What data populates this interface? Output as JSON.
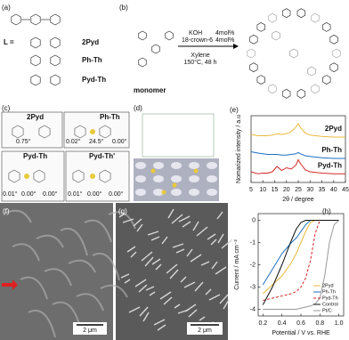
{
  "panels": {
    "a": {
      "label": "(a)",
      "L": "L =",
      "names": [
        "2Pyd",
        "Ph-Th",
        "Pyd-Th"
      ]
    },
    "b": {
      "label": "(b)",
      "monomer": "monomer",
      "reagents": [
        "KOH",
        "18-crown-6",
        "4mol%",
        "4mol%",
        "Xylene",
        "150°C, 48 h"
      ]
    },
    "c": {
      "label": "(c)",
      "structures": [
        {
          "name": "2Pyd",
          "angles": [
            "0.75°"
          ]
        },
        {
          "name": "Ph-Th",
          "angles": [
            "0.02°",
            "24.5°",
            "0.00°"
          ]
        },
        {
          "name": "Pyd-Th",
          "angles": [
            "0.01°",
            "0.00°",
            "0.00°"
          ]
        },
        {
          "name": "Pyd-Th'",
          "angles": [
            "0.01°",
            "0.00°",
            "0.00°"
          ]
        }
      ]
    },
    "d": {
      "label": "(d)"
    },
    "f": {
      "label": "(f)",
      "scale": "2 μm"
    },
    "g": {
      "label": "(g)",
      "scale": "2 μm"
    }
  },
  "chart_data": [
    {
      "type": "line",
      "panel": "(e)",
      "xlabel": "2θ / degree",
      "ylabel": "Nomarized intensity / a.u",
      "x": [
        5,
        8,
        10,
        12,
        14,
        16,
        18,
        20,
        22,
        24,
        25,
        26,
        28,
        30,
        35,
        40,
        45
      ],
      "xlim": [
        5,
        45
      ],
      "xticks": [
        5,
        10,
        15,
        20,
        25,
        30,
        35,
        40,
        45
      ],
      "ylim": [
        0,
        10
      ],
      "series": [
        {
          "name": "2Pyd",
          "color": "#e8b93c",
          "values": [
            7.2,
            7.0,
            7.0,
            7.0,
            7.1,
            7.3,
            7.2,
            7.3,
            7.6,
            8.3,
            8.8,
            8.2,
            7.4,
            7.1,
            6.9,
            6.8,
            6.8
          ]
        },
        {
          "name": "Ph-Th",
          "color": "#1f6fbf",
          "values": [
            4.6,
            4.4,
            4.3,
            4.2,
            4.2,
            4.2,
            4.1,
            4.1,
            4.2,
            4.3,
            4.5,
            4.3,
            4.0,
            3.9,
            3.7,
            3.6,
            3.6
          ]
        },
        {
          "name": "Pyd-Th",
          "color": "#d62728",
          "values": [
            1.6,
            1.3,
            1.4,
            1.4,
            1.6,
            2.4,
            1.8,
            2.2,
            2.0,
            2.6,
            3.4,
            2.8,
            1.9,
            1.6,
            1.4,
            1.3,
            1.3
          ]
        }
      ]
    },
    {
      "type": "line",
      "panel": "(h)",
      "xlabel": "Potential / V vs. RHE",
      "ylabel": "Current / mA cm⁻²",
      "x": [
        0.2,
        0.3,
        0.4,
        0.5,
        0.55,
        0.6,
        0.65,
        0.7,
        0.75,
        0.8,
        0.85,
        0.9,
        0.95,
        1.0
      ],
      "xlim": [
        0.15,
        1.05
      ],
      "xticks": [
        0.2,
        0.4,
        0.6,
        0.8,
        {
          "value": 1,
          "label": "1.0"
        }
      ],
      "ylim": [
        -4.3,
        0.3
      ],
      "yticks": [
        0,
        -1,
        -2,
        -3,
        -4
      ],
      "legend": "lower right",
      "series": [
        {
          "name": "2Pyd",
          "color": "#e8b93c",
          "values": [
            -3.3,
            -2.9,
            -2.5,
            -1.9,
            -1.5,
            -1.0,
            -0.5,
            -0.1,
            0,
            0,
            0,
            0,
            0,
            0
          ]
        },
        {
          "name": "Ph-Th",
          "color": "#1f6fbf",
          "values": [
            -2.9,
            -2.2,
            -1.5,
            -1.0,
            -0.8,
            -0.5,
            -0.2,
            0,
            0,
            0,
            0,
            0,
            0,
            0
          ]
        },
        {
          "name": "Pyd-Th",
          "color": "#d62728",
          "dashed": true,
          "values": [
            -3.6,
            -3.5,
            -3.4,
            -3.3,
            -3.2,
            -3.0,
            -2.6,
            -1.8,
            -0.6,
            0,
            0,
            0,
            0,
            0
          ]
        },
        {
          "name": "Control",
          "color": "#111111",
          "values": [
            -3.8,
            -3.0,
            -2.0,
            -0.9,
            -0.4,
            -0.1,
            0,
            0,
            0,
            0,
            0,
            0,
            0,
            0
          ]
        },
        {
          "name": "Pt/C",
          "color": "#999999",
          "values": [
            -4.0,
            -4.0,
            -4.0,
            -4.0,
            -4.0,
            -3.95,
            -3.9,
            -3.85,
            -3.75,
            -3.5,
            -2.5,
            -1.0,
            -0.2,
            0
          ]
        }
      ]
    }
  ]
}
